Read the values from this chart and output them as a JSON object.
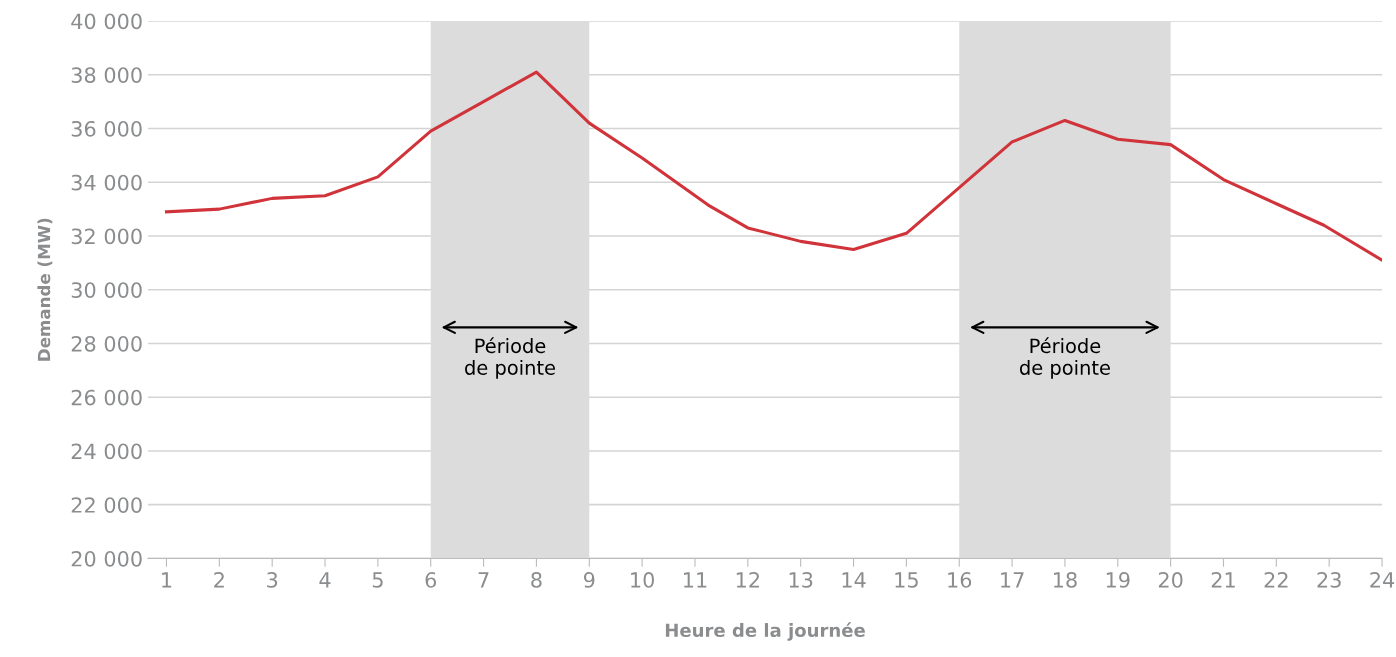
{
  "chart_data": {
    "type": "line",
    "xlabel": "Heure de la journée",
    "ylabel": "Demande (MW)",
    "x": [
      1,
      2,
      3,
      4,
      5,
      6,
      7,
      8,
      9,
      10,
      11.25,
      12,
      13,
      14,
      15,
      16,
      17,
      18,
      19,
      20,
      21,
      22,
      22.9,
      24
    ],
    "series": [
      {
        "color": "#d0343a",
        "values": [
          32900,
          33000,
          33400,
          33500,
          34200,
          35900,
          37000,
          38100,
          36200,
          34900,
          33150,
          32300,
          31800,
          31500,
          32100,
          33800,
          35500,
          36300,
          35600,
          35400,
          34100,
          33200,
          32400,
          31100
        ]
      }
    ],
    "xlim": [
      0.65,
      24
    ],
    "xticks": [
      1,
      2,
      3,
      4,
      5,
      6,
      7,
      8,
      9,
      10,
      11,
      12,
      13,
      14,
      15,
      16,
      17,
      18,
      19,
      20,
      21,
      22,
      23,
      24
    ],
    "ylim": [
      20000,
      40000
    ],
    "yticks": [
      {
        "value": 20000,
        "label": "20 000"
      },
      {
        "value": 22000,
        "label": "22 000"
      },
      {
        "value": 24000,
        "label": "24 000"
      },
      {
        "value": 26000,
        "label": "26 000"
      },
      {
        "value": 28000,
        "label": "28 000"
      },
      {
        "value": 30000,
        "label": "30 000"
      },
      {
        "value": 32000,
        "label": "32 000"
      },
      {
        "value": 34000,
        "label": "34 000"
      },
      {
        "value": 36000,
        "label": "36 000"
      },
      {
        "value": 38000,
        "label": "38 000"
      },
      {
        "value": 40000,
        "label": "40 000"
      }
    ],
    "grid": "y",
    "marker": "none",
    "line_style": "solid",
    "bands": [
      {
        "axis": "x",
        "from": 6,
        "to": 9,
        "label": "Période\nde pointe",
        "color": "#dcdcdc"
      },
      {
        "axis": "x",
        "from": 16,
        "to": 20,
        "label": "Période\nde pointe",
        "color": "#dcdcdc"
      }
    ]
  }
}
